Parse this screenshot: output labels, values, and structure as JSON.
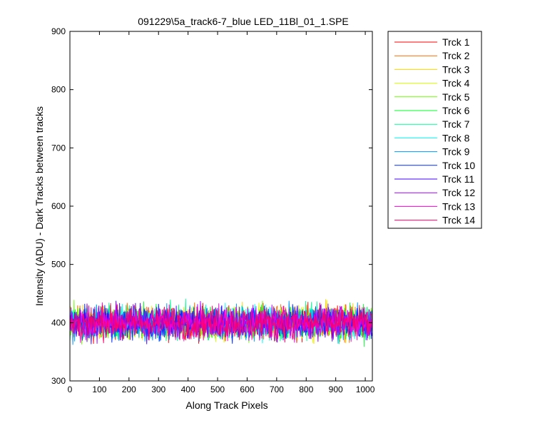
{
  "chart_data": {
    "type": "line",
    "title": "091229\\5a_track6-7_blue LED_11Bl_01_1.SPE",
    "xlabel": "Along Track Pixels",
    "ylabel": "Intensity (ADU) - Dark Tracks between tracks",
    "xlim": [
      0,
      1024
    ],
    "ylim": [
      300,
      900
    ],
    "xticks": [
      0,
      100,
      200,
      300,
      400,
      500,
      600,
      700,
      800,
      900,
      1000
    ],
    "yticks": [
      300,
      400,
      500,
      600,
      700,
      800,
      900
    ],
    "grid": false,
    "legend_position": "outside-right",
    "noise_mean": 400,
    "noise_range": [
      350,
      450
    ],
    "series": [
      {
        "name": "Trck 1",
        "color": "#ff0000"
      },
      {
        "name": "Trck 2",
        "color": "#ff6a00"
      },
      {
        "name": "Trck 3",
        "color": "#ffd400"
      },
      {
        "name": "Trck 4",
        "color": "#d4ff00"
      },
      {
        "name": "Trck 5",
        "color": "#6aff00"
      },
      {
        "name": "Trck 6",
        "color": "#00ff2a"
      },
      {
        "name": "Trck 7",
        "color": "#00ff95"
      },
      {
        "name": "Trck 8",
        "color": "#00ffff"
      },
      {
        "name": "Trck 9",
        "color": "#0095ff"
      },
      {
        "name": "Trck 10",
        "color": "#002aff"
      },
      {
        "name": "Trck 11",
        "color": "#4000ff"
      },
      {
        "name": "Trck 12",
        "color": "#aa00ff"
      },
      {
        "name": "Trck 13",
        "color": "#ff00d4"
      },
      {
        "name": "Trck 14",
        "color": "#ff0066"
      }
    ]
  }
}
